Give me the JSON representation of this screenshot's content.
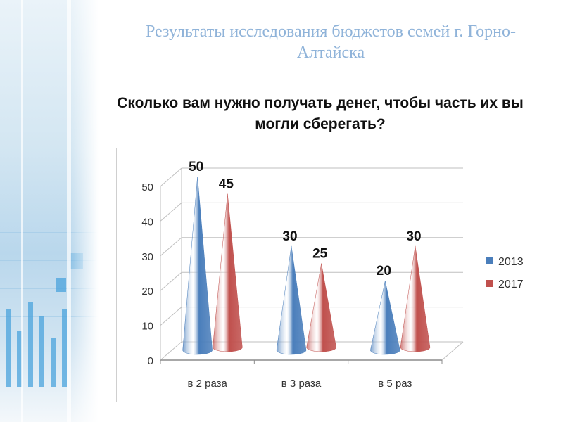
{
  "page": {
    "title": "Результаты исследования бюджетов семей г. Горно-Алтайска",
    "subtitle": "Сколько вам нужно получать денег, чтобы часть их вы могли сберегать?"
  },
  "chart_data": {
    "type": "bar",
    "style": "3d-cone",
    "categories": [
      "в 2 раза",
      "в 3 раза",
      "в 5 раз"
    ],
    "series": [
      {
        "name": "2013",
        "values": [
          50,
          30,
          20
        ],
        "color": "#4a7ebb"
      },
      {
        "name": "2017",
        "values": [
          45,
          25,
          30
        ],
        "color": "#c0504d"
      }
    ],
    "ylim": [
      0,
      50
    ],
    "yticks": [
      0,
      10,
      20,
      30,
      40,
      50
    ],
    "grid": true,
    "legend": "right",
    "data_labels": true
  }
}
